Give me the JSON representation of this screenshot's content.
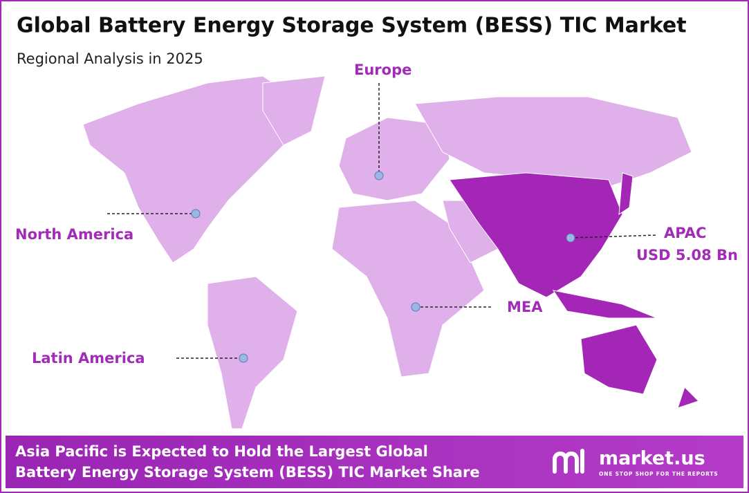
{
  "header": {
    "title": "Global Battery Energy Storage System (BESS) TIC Market",
    "subtitle": "Regional Analysis in 2025"
  },
  "regions": [
    {
      "name": "Europe"
    },
    {
      "name": "North America"
    },
    {
      "name": "APAC",
      "value": "USD 5.08 Bn"
    },
    {
      "name": "MEA"
    },
    {
      "name": "Latin America"
    }
  ],
  "footer": {
    "line1": "Asia Pacific is Expected to Hold the Largest Global",
    "line2": "Battery Energy Storage System (BESS) TIC Market Share",
    "brand": "market.us",
    "tagline": "ONE STOP SHOP FOR THE REPORTS"
  }
}
